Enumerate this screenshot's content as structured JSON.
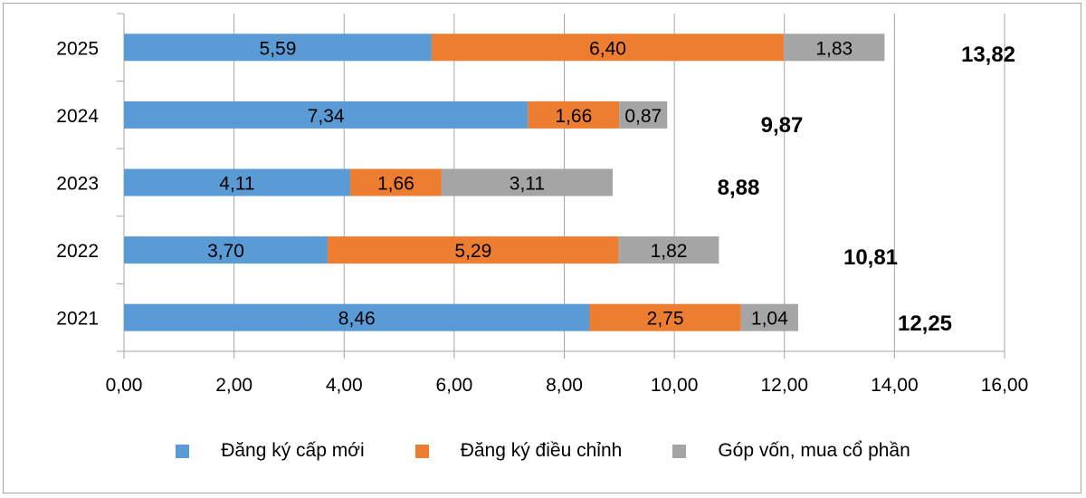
{
  "chart_data": {
    "type": "bar",
    "orientation": "horizontal",
    "stacked": true,
    "categories": [
      "2025",
      "2024",
      "2023",
      "2022",
      "2021"
    ],
    "series": [
      {
        "name": "Đăng ký cấp mới",
        "color": "#5b9bd5",
        "values": [
          5.59,
          7.34,
          4.11,
          3.7,
          8.46
        ],
        "labels": [
          "5,59",
          "7,34",
          "4,11",
          "3,70",
          "8,46"
        ]
      },
      {
        "name": "Đăng ký điều chỉnh",
        "color": "#ed7d31",
        "values": [
          6.4,
          1.66,
          1.66,
          5.29,
          2.75
        ],
        "labels": [
          "6,40",
          "1,66",
          "1,66",
          "5,29",
          "2,75"
        ]
      },
      {
        "name": "Góp vốn, mua cổ phần",
        "color": "#a5a5a5",
        "values": [
          1.83,
          0.87,
          3.11,
          1.82,
          1.04
        ],
        "labels": [
          "1,83",
          "0,87",
          "3,11",
          "1,82",
          "1,04"
        ]
      }
    ],
    "totals": [
      "13,82",
      "9,87",
      "8,88",
      "10,81",
      "12,25"
    ],
    "xlim": [
      0,
      16
    ],
    "xticks": [
      "0,00",
      "2,00",
      "4,00",
      "6,00",
      "8,00",
      "10,00",
      "12,00",
      "14,00",
      "16,00"
    ],
    "grid": "vertical",
    "legend": "bottom"
  }
}
